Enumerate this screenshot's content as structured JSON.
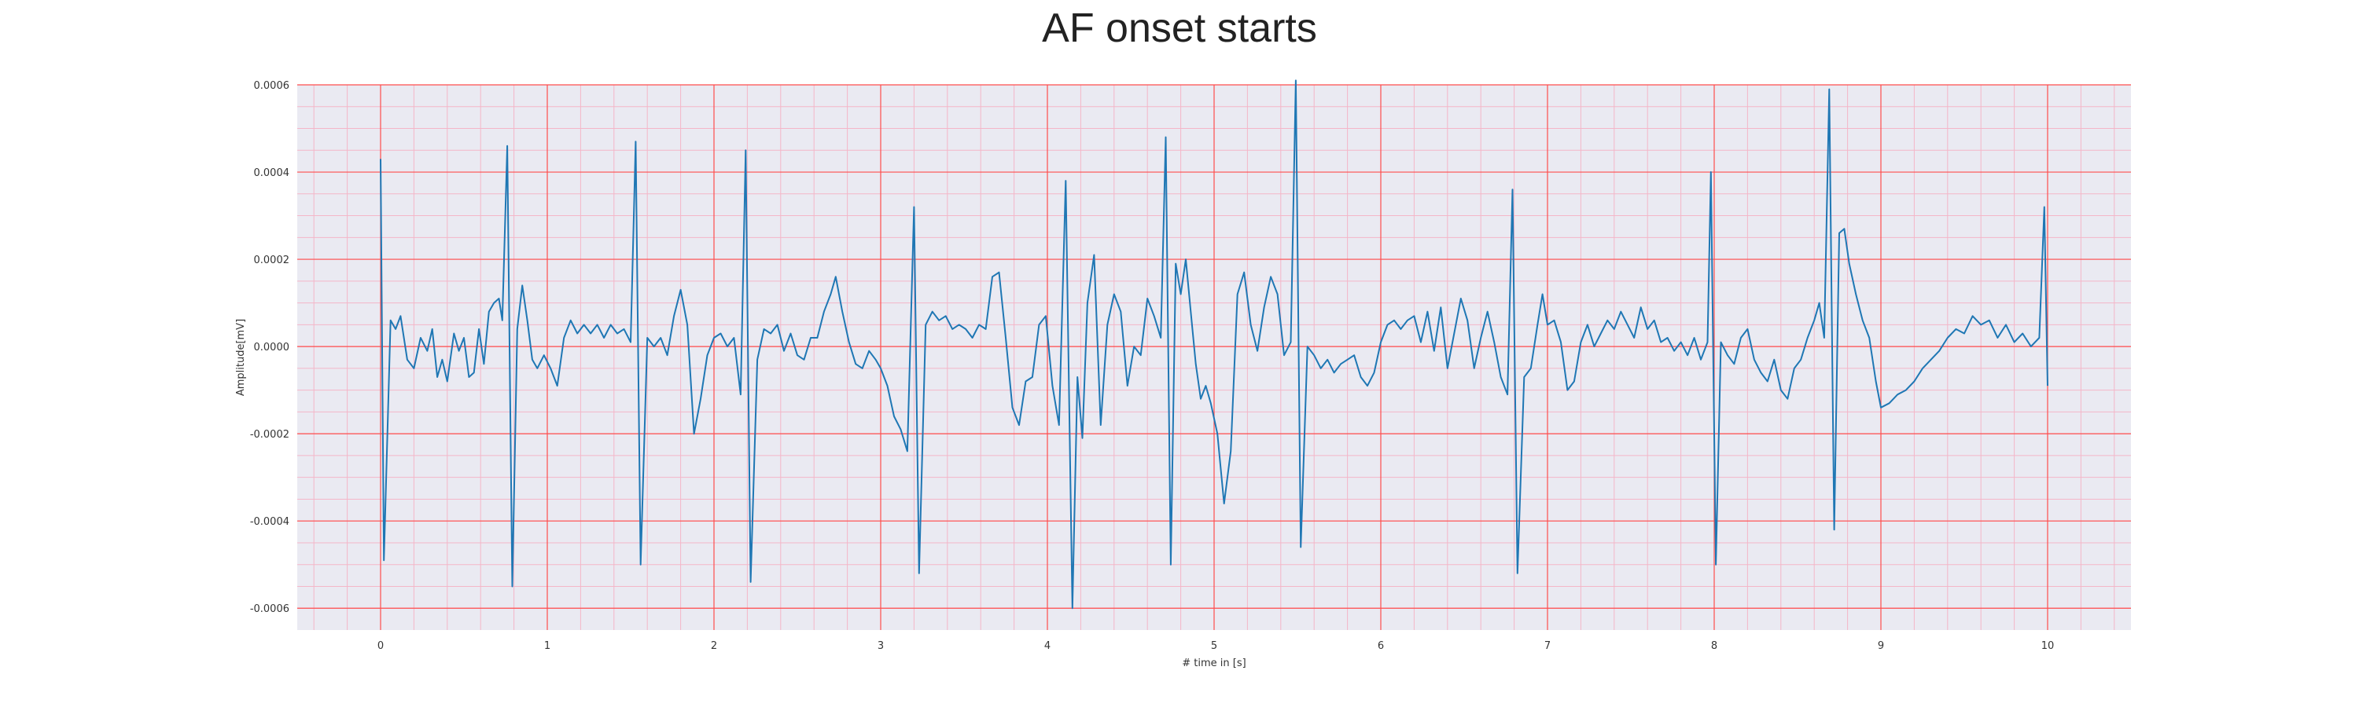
{
  "chart_data": {
    "type": "line",
    "title": "AF onset starts",
    "xlabel": "# time in [s]",
    "ylabel": "Amplitude[mV]",
    "xlim": [
      -0.5,
      10.5
    ],
    "ylim": [
      -0.00065,
      0.0006
    ],
    "xticks": [
      "0",
      "1",
      "2",
      "3",
      "4",
      "5",
      "6",
      "7",
      "8",
      "9",
      "10"
    ],
    "yticks": [
      "-0.0006",
      "-0.0004",
      "-0.0002",
      "0.0000",
      "0.0002",
      "0.0004",
      "0.0006"
    ],
    "grid": true,
    "minor_grid": true,
    "colors": {
      "line": "#1f77b4",
      "plot_background": "#eaeaf2",
      "major_grid": "#ff4d4d",
      "minor_grid": "#f4b6c8"
    },
    "series": [
      {
        "points": [
          [
            0.0,
            0.00043
          ],
          [
            0.02,
            -0.00049
          ],
          [
            0.06,
            6e-05
          ],
          [
            0.09,
            4e-05
          ],
          [
            0.12,
            7e-05
          ],
          [
            0.16,
            -3e-05
          ],
          [
            0.2,
            -5e-05
          ],
          [
            0.24,
            2e-05
          ],
          [
            0.28,
            -1e-05
          ],
          [
            0.31,
            4e-05
          ],
          [
            0.34,
            -7e-05
          ],
          [
            0.37,
            -3e-05
          ],
          [
            0.4,
            -8e-05
          ],
          [
            0.44,
            3e-05
          ],
          [
            0.47,
            -1e-05
          ],
          [
            0.5,
            2e-05
          ],
          [
            0.53,
            -7e-05
          ],
          [
            0.56,
            -6e-05
          ],
          [
            0.59,
            4e-05
          ],
          [
            0.62,
            -4e-05
          ],
          [
            0.65,
            8e-05
          ],
          [
            0.68,
            0.0001
          ],
          [
            0.71,
            0.00011
          ],
          [
            0.73,
            6e-05
          ],
          [
            0.76,
            0.00046
          ],
          [
            0.79,
            -0.00055
          ],
          [
            0.82,
            4e-05
          ],
          [
            0.85,
            0.00014
          ],
          [
            0.88,
            6e-05
          ],
          [
            0.91,
            -3e-05
          ],
          [
            0.94,
            -5e-05
          ],
          [
            0.98,
            -2e-05
          ],
          [
            1.02,
            -5e-05
          ],
          [
            1.06,
            -9e-05
          ],
          [
            1.1,
            2e-05
          ],
          [
            1.14,
            6e-05
          ],
          [
            1.18,
            3e-05
          ],
          [
            1.22,
            5e-05
          ],
          [
            1.26,
            3e-05
          ],
          [
            1.3,
            5e-05
          ],
          [
            1.34,
            2e-05
          ],
          [
            1.38,
            5e-05
          ],
          [
            1.42,
            3e-05
          ],
          [
            1.46,
            4e-05
          ],
          [
            1.5,
            1e-05
          ],
          [
            1.53,
            0.00047
          ],
          [
            1.56,
            -0.0005
          ],
          [
            1.6,
            2e-05
          ],
          [
            1.64,
            0.0
          ],
          [
            1.68,
            2e-05
          ],
          [
            1.72,
            -2e-05
          ],
          [
            1.76,
            7e-05
          ],
          [
            1.8,
            0.00013
          ],
          [
            1.84,
            5e-05
          ],
          [
            1.88,
            -0.0002
          ],
          [
            1.92,
            -0.00012
          ],
          [
            1.96,
            -2e-05
          ],
          [
            2.0,
            2e-05
          ],
          [
            2.04,
            3e-05
          ],
          [
            2.08,
            0.0
          ],
          [
            2.12,
            2e-05
          ],
          [
            2.16,
            -0.00011
          ],
          [
            2.19,
            0.00045
          ],
          [
            2.22,
            -0.00054
          ],
          [
            2.26,
            -3e-05
          ],
          [
            2.3,
            4e-05
          ],
          [
            2.34,
            3e-05
          ],
          [
            2.38,
            5e-05
          ],
          [
            2.42,
            -1e-05
          ],
          [
            2.46,
            3e-05
          ],
          [
            2.5,
            -2e-05
          ],
          [
            2.54,
            -3e-05
          ],
          [
            2.58,
            2e-05
          ],
          [
            2.62,
            2e-05
          ],
          [
            2.66,
            8e-05
          ],
          [
            2.7,
            0.00012
          ],
          [
            2.73,
            0.00016
          ],
          [
            2.77,
            8e-05
          ],
          [
            2.81,
            1e-05
          ],
          [
            2.85,
            -4e-05
          ],
          [
            2.89,
            -5e-05
          ],
          [
            2.93,
            -1e-05
          ],
          [
            2.97,
            -3e-05
          ],
          [
            3.0,
            -5e-05
          ],
          [
            3.04,
            -9e-05
          ],
          [
            3.08,
            -0.00016
          ],
          [
            3.12,
            -0.00019
          ],
          [
            3.16,
            -0.00024
          ],
          [
            3.2,
            0.00032
          ],
          [
            3.23,
            -0.00052
          ],
          [
            3.27,
            5e-05
          ],
          [
            3.31,
            8e-05
          ],
          [
            3.35,
            6e-05
          ],
          [
            3.39,
            7e-05
          ],
          [
            3.43,
            4e-05
          ],
          [
            3.47,
            5e-05
          ],
          [
            3.51,
            4e-05
          ],
          [
            3.55,
            2e-05
          ],
          [
            3.59,
            5e-05
          ],
          [
            3.63,
            4e-05
          ],
          [
            3.67,
            0.00016
          ],
          [
            3.71,
            0.00017
          ],
          [
            3.75,
            2e-05
          ],
          [
            3.79,
            -0.00014
          ],
          [
            3.83,
            -0.00018
          ],
          [
            3.87,
            -8e-05
          ],
          [
            3.91,
            -7e-05
          ],
          [
            3.95,
            5e-05
          ],
          [
            3.99,
            7e-05
          ],
          [
            4.03,
            -9e-05
          ],
          [
            4.07,
            -0.00018
          ],
          [
            4.11,
            0.00038
          ],
          [
            4.15,
            -0.0006
          ],
          [
            4.18,
            -7e-05
          ],
          [
            4.21,
            -0.00021
          ],
          [
            4.24,
            0.0001
          ],
          [
            4.28,
            0.00021
          ],
          [
            4.32,
            -0.00018
          ],
          [
            4.36,
            5e-05
          ],
          [
            4.4,
            0.00012
          ],
          [
            4.44,
            8e-05
          ],
          [
            4.48,
            -9e-05
          ],
          [
            4.52,
            0.0
          ],
          [
            4.56,
            -2e-05
          ],
          [
            4.6,
            0.00011
          ],
          [
            4.64,
            7e-05
          ],
          [
            4.68,
            2e-05
          ],
          [
            4.71,
            0.00048
          ],
          [
            4.74,
            -0.0005
          ],
          [
            4.77,
            0.00019
          ],
          [
            4.8,
            0.00012
          ],
          [
            4.83,
            0.0002
          ],
          [
            4.86,
            8e-05
          ],
          [
            4.89,
            -4e-05
          ],
          [
            4.92,
            -0.00012
          ],
          [
            4.95,
            -9e-05
          ],
          [
            4.98,
            -0.00013
          ],
          [
            5.02,
            -0.0002
          ],
          [
            5.06,
            -0.00036
          ],
          [
            5.1,
            -0.00024
          ],
          [
            5.14,
            0.00012
          ],
          [
            5.18,
            0.00017
          ],
          [
            5.22,
            5e-05
          ],
          [
            5.26,
            -1e-05
          ],
          [
            5.3,
            9e-05
          ],
          [
            5.34,
            0.00016
          ],
          [
            5.38,
            0.00012
          ],
          [
            5.42,
            -2e-05
          ],
          [
            5.46,
            1e-05
          ],
          [
            5.49,
            0.00061
          ],
          [
            5.52,
            -0.00046
          ],
          [
            5.56,
            0.0
          ],
          [
            5.6,
            -2e-05
          ],
          [
            5.64,
            -5e-05
          ],
          [
            5.68,
            -3e-05
          ],
          [
            5.72,
            -6e-05
          ],
          [
            5.76,
            -4e-05
          ],
          [
            5.8,
            -3e-05
          ],
          [
            5.84,
            -2e-05
          ],
          [
            5.88,
            -7e-05
          ],
          [
            5.92,
            -9e-05
          ],
          [
            5.96,
            -6e-05
          ],
          [
            6.0,
            1e-05
          ],
          [
            6.04,
            5e-05
          ],
          [
            6.08,
            6e-05
          ],
          [
            6.12,
            4e-05
          ],
          [
            6.16,
            6e-05
          ],
          [
            6.2,
            7e-05
          ],
          [
            6.24,
            1e-05
          ],
          [
            6.28,
            8e-05
          ],
          [
            6.32,
            -1e-05
          ],
          [
            6.36,
            9e-05
          ],
          [
            6.4,
            -5e-05
          ],
          [
            6.44,
            3e-05
          ],
          [
            6.48,
            0.00011
          ],
          [
            6.52,
            6e-05
          ],
          [
            6.56,
            -5e-05
          ],
          [
            6.6,
            2e-05
          ],
          [
            6.64,
            8e-05
          ],
          [
            6.68,
            1e-05
          ],
          [
            6.72,
            -7e-05
          ],
          [
            6.76,
            -0.00011
          ],
          [
            6.79,
            0.00036
          ],
          [
            6.82,
            -0.00052
          ],
          [
            6.86,
            -7e-05
          ],
          [
            6.9,
            -5e-05
          ],
          [
            6.94,
            5e-05
          ],
          [
            6.97,
            0.00012
          ],
          [
            7.0,
            5e-05
          ],
          [
            7.04,
            6e-05
          ],
          [
            7.08,
            1e-05
          ],
          [
            7.12,
            -0.0001
          ],
          [
            7.16,
            -8e-05
          ],
          [
            7.2,
            1e-05
          ],
          [
            7.24,
            5e-05
          ],
          [
            7.28,
            0.0
          ],
          [
            7.32,
            3e-05
          ],
          [
            7.36,
            6e-05
          ],
          [
            7.4,
            4e-05
          ],
          [
            7.44,
            8e-05
          ],
          [
            7.48,
            5e-05
          ],
          [
            7.52,
            2e-05
          ],
          [
            7.56,
            9e-05
          ],
          [
            7.6,
            4e-05
          ],
          [
            7.64,
            6e-05
          ],
          [
            7.68,
            1e-05
          ],
          [
            7.72,
            2e-05
          ],
          [
            7.76,
            -1e-05
          ],
          [
            7.8,
            1e-05
          ],
          [
            7.84,
            -2e-05
          ],
          [
            7.88,
            2e-05
          ],
          [
            7.92,
            -3e-05
          ],
          [
            7.96,
            1e-05
          ],
          [
            7.98,
            0.0004
          ],
          [
            8.01,
            -0.0005
          ],
          [
            8.04,
            1e-05
          ],
          [
            8.08,
            -2e-05
          ],
          [
            8.12,
            -4e-05
          ],
          [
            8.16,
            2e-05
          ],
          [
            8.2,
            4e-05
          ],
          [
            8.24,
            -3e-05
          ],
          [
            8.28,
            -6e-05
          ],
          [
            8.32,
            -8e-05
          ],
          [
            8.36,
            -3e-05
          ],
          [
            8.4,
            -0.0001
          ],
          [
            8.44,
            -0.00012
          ],
          [
            8.48,
            -5e-05
          ],
          [
            8.52,
            -3e-05
          ],
          [
            8.56,
            2e-05
          ],
          [
            8.6,
            6e-05
          ],
          [
            8.63,
            0.0001
          ],
          [
            8.66,
            2e-05
          ],
          [
            8.69,
            0.00059
          ],
          [
            8.72,
            -0.00042
          ],
          [
            8.75,
            0.00026
          ],
          [
            8.78,
            0.00027
          ],
          [
            8.81,
            0.00019
          ],
          [
            8.85,
            0.00012
          ],
          [
            8.89,
            6e-05
          ],
          [
            8.93,
            2e-05
          ],
          [
            8.97,
            -8e-05
          ],
          [
            9.0,
            -0.00014
          ],
          [
            9.05,
            -0.00013
          ],
          [
            9.1,
            -0.00011
          ],
          [
            9.15,
            -0.0001
          ],
          [
            9.2,
            -8e-05
          ],
          [
            9.25,
            -5e-05
          ],
          [
            9.3,
            -3e-05
          ],
          [
            9.35,
            -1e-05
          ],
          [
            9.4,
            2e-05
          ],
          [
            9.45,
            4e-05
          ],
          [
            9.5,
            3e-05
          ],
          [
            9.55,
            7e-05
          ],
          [
            9.6,
            5e-05
          ],
          [
            9.65,
            6e-05
          ],
          [
            9.7,
            2e-05
          ],
          [
            9.75,
            5e-05
          ],
          [
            9.8,
            1e-05
          ],
          [
            9.85,
            3e-05
          ],
          [
            9.9,
            0.0
          ],
          [
            9.95,
            2e-05
          ],
          [
            9.98,
            0.00032
          ],
          [
            10.0,
            -9e-05
          ]
        ]
      }
    ]
  }
}
